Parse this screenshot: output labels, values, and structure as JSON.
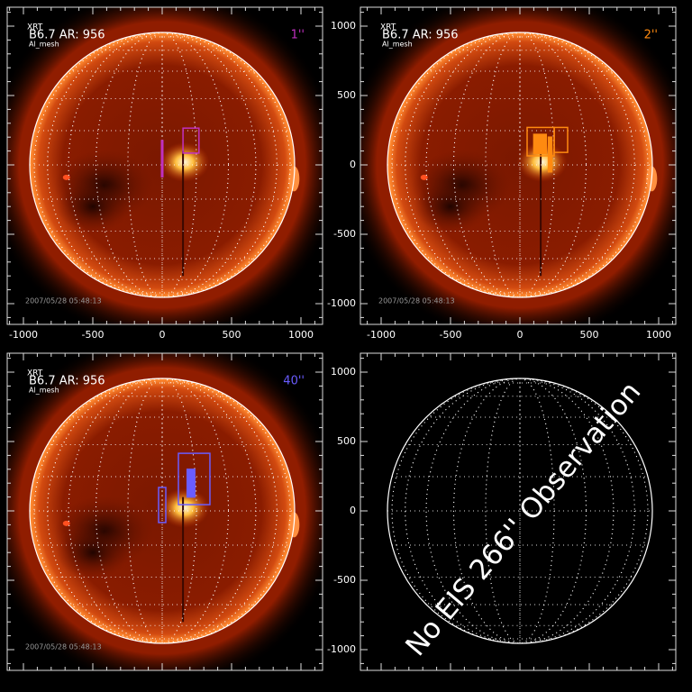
{
  "instrument": "XRT",
  "panels": [
    {
      "label": "B6.7 AR:  956",
      "filter": "Al_mesh",
      "scale": "1''",
      "date": "2007/05/28 05:48:13",
      "color": "#c030c0"
    },
    {
      "label": "B6.7 AR:  956",
      "filter": "Al_mesh",
      "scale": "2''",
      "date": "2007/05/28 05:48:13",
      "color": "#ff8a10"
    },
    {
      "label": "B6.7 AR:  956",
      "filter": "Al_mesh",
      "scale": "40''",
      "date": "2007/05/28 05:48:13",
      "color": "#6a5cff"
    }
  ],
  "x_ticks": [
    "-1000",
    "-500",
    "0",
    "500",
    "1000"
  ],
  "y_ticks": [
    "1000",
    "500",
    "0",
    "-500",
    "-1000"
  ],
  "message": "No EIS 266'' Observation"
}
